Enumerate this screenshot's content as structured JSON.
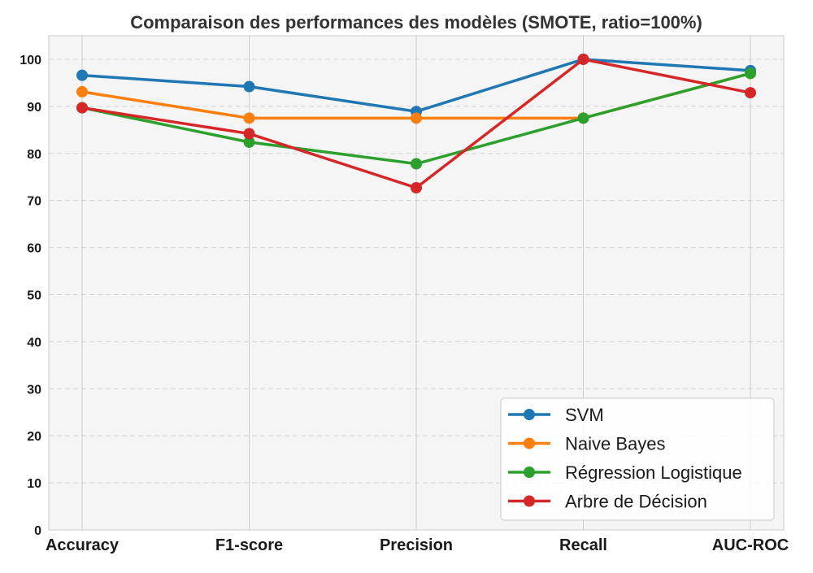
{
  "chart_data": {
    "type": "line",
    "title": "Comparaison des performances des modèles (SMOTE, ratio=100%)",
    "xlabel": "",
    "ylabel": "",
    "categories": [
      "Accuracy",
      "F1-score",
      "Precision",
      "Recall",
      "AUC-ROC"
    ],
    "ylim": [
      0,
      105
    ],
    "yticks": [
      0,
      10,
      20,
      30,
      40,
      50,
      60,
      70,
      80,
      90,
      100
    ],
    "grid": true,
    "legend_position": "bottom-right",
    "series": [
      {
        "name": "SVM",
        "color": "#1f77b4",
        "values": [
          96.6,
          94.2,
          88.9,
          100.0,
          97.6
        ]
      },
      {
        "name": "Naive Bayes",
        "color": "#ff7f0e",
        "values": [
          93.1,
          87.5,
          87.5,
          87.5,
          97.0
        ]
      },
      {
        "name": "Régression Logistique",
        "color": "#2ca02c",
        "values": [
          89.7,
          82.4,
          77.8,
          87.5,
          97.0
        ]
      },
      {
        "name": "Arbre de Décision",
        "color": "#d62728",
        "values": [
          89.7,
          84.2,
          72.7,
          100.0,
          92.9
        ]
      }
    ]
  }
}
